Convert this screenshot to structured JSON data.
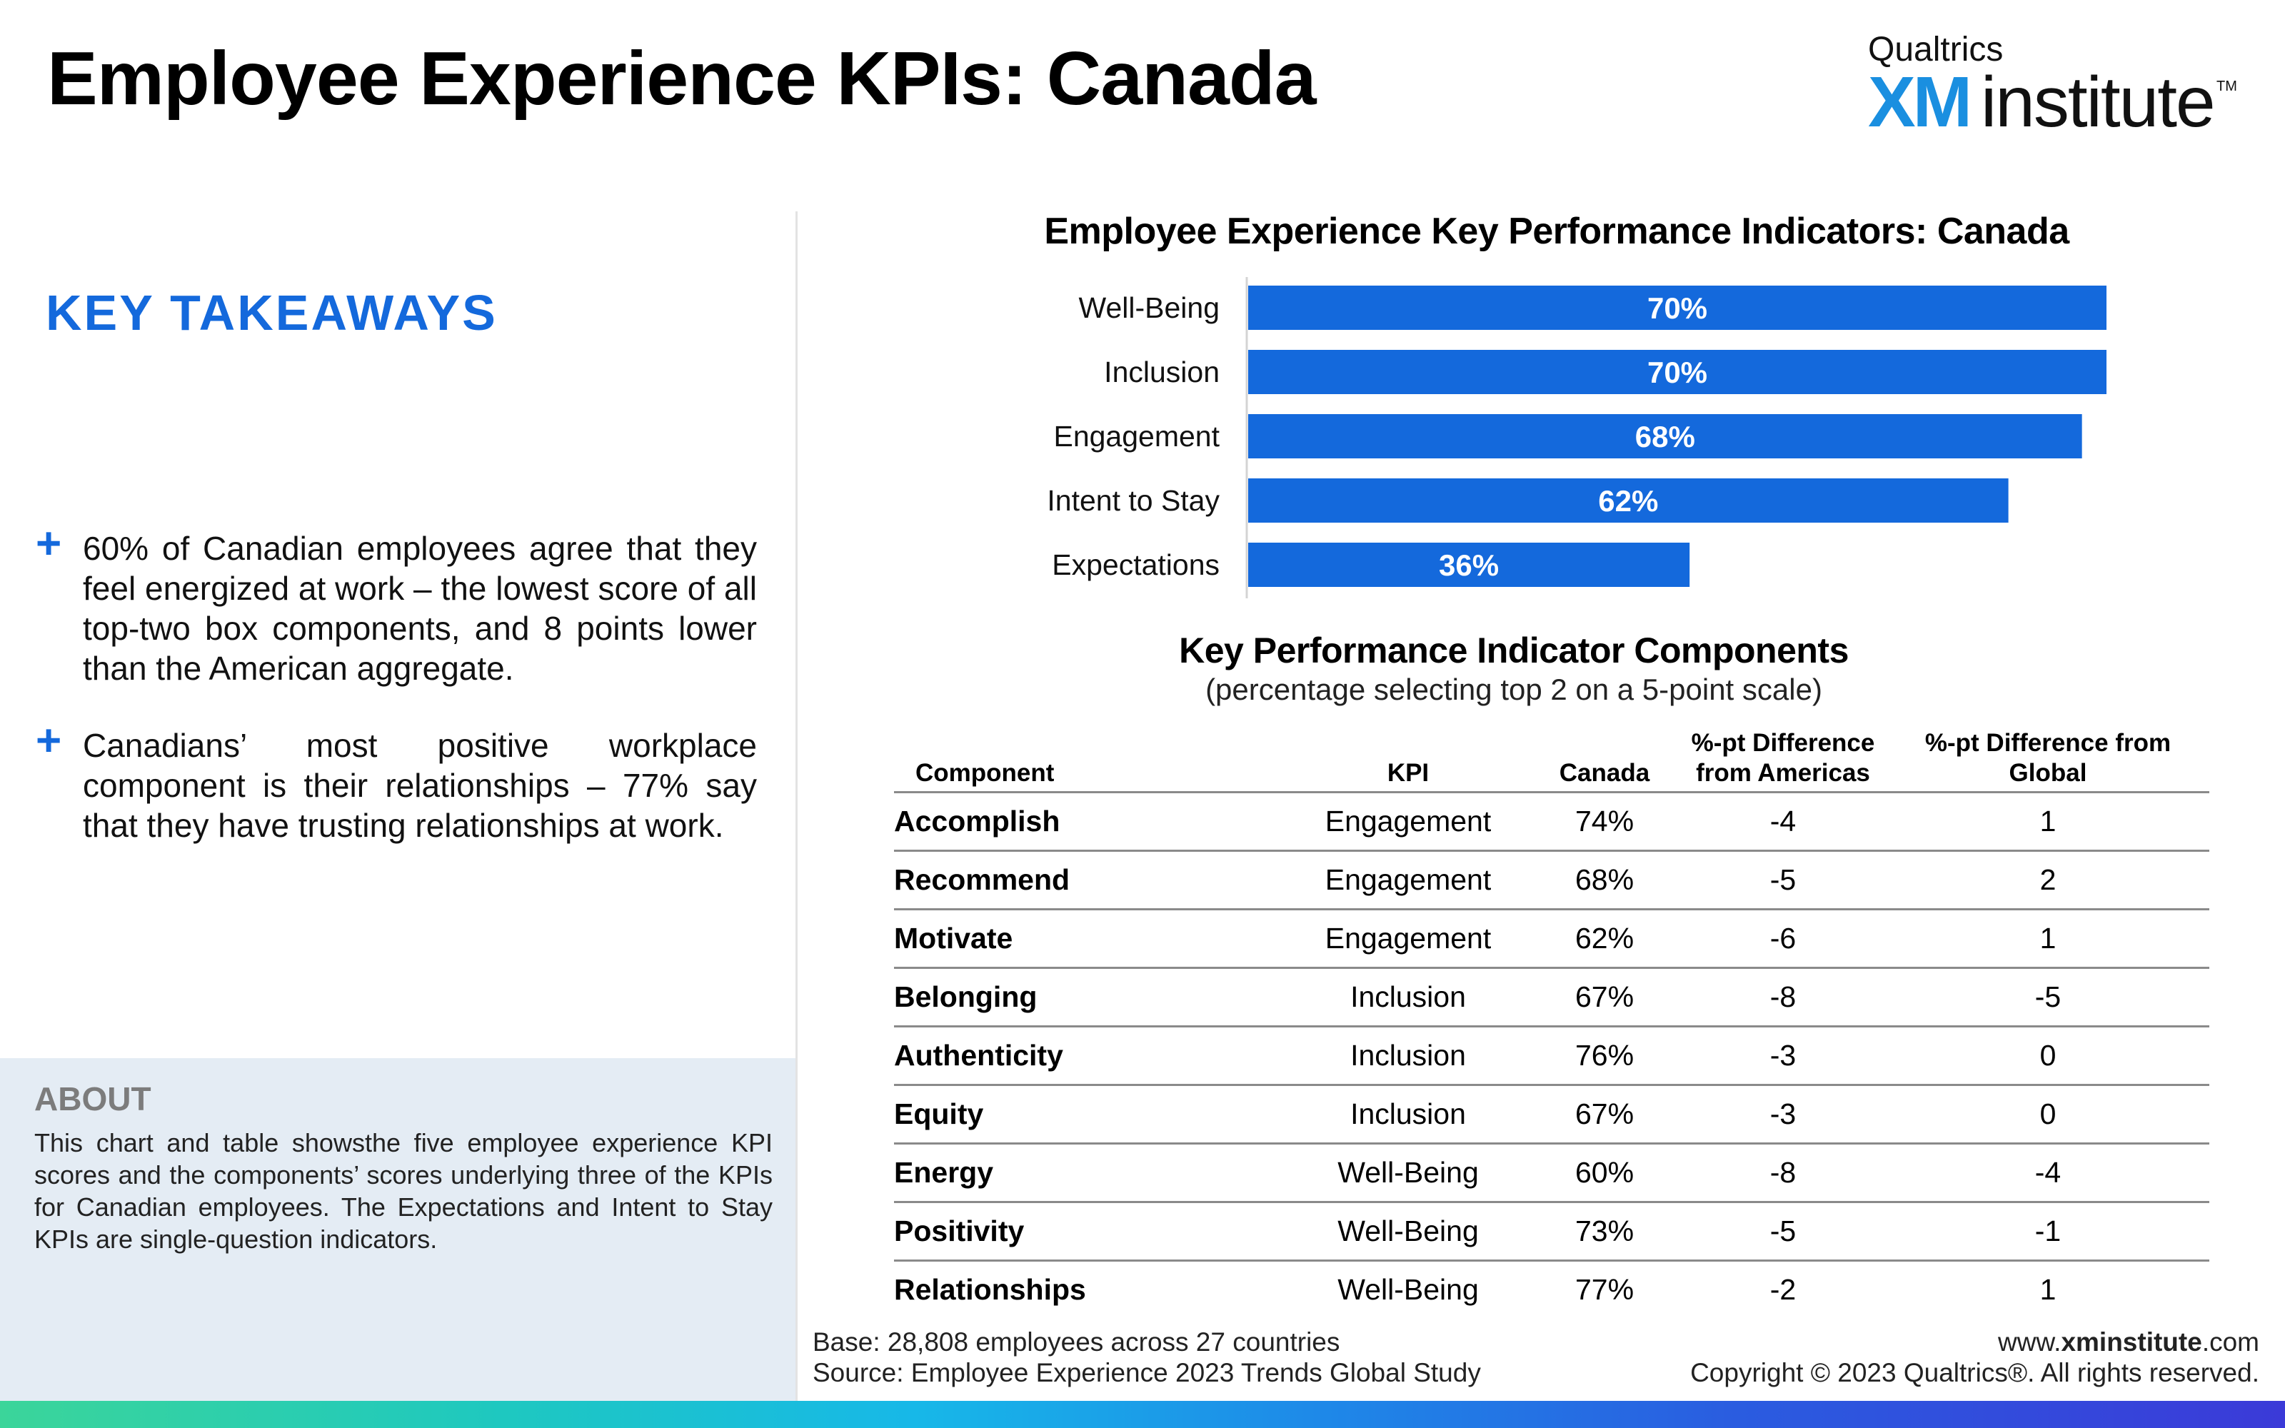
{
  "page": {
    "title": "Employee Experience KPIs: Canada",
    "logo_top": "Qualtrics",
    "logo_xm": "XM",
    "logo_institute": "institute",
    "logo_tm": "TM"
  },
  "takeaways": {
    "title": "KEY TAKEAWAYS",
    "items": [
      "60% of Canadian employees agree that they feel energized at work – the lowest score of all top-two box components, and 8 points lower than the American aggregate.",
      "Canadians’ most positive workplace component is their relationships – 77% say that they have trusting relationships at work."
    ]
  },
  "about": {
    "title": "ABOUT",
    "text": "This chart and table showsthe five employee experience KPI scores and the components’ scores underlying three of the KPIs for Canadian employees. The Expectations and Intent to Stay KPIs are single-question indicators."
  },
  "chart_data": {
    "type": "bar",
    "orientation": "horizontal",
    "title": "Employee Experience Key Performance Indicators: Canada",
    "categories": [
      "Well-Being",
      "Inclusion",
      "Engagement",
      "Intent to Stay",
      "Expectations"
    ],
    "values": [
      70,
      70,
      68,
      62,
      36
    ],
    "labels": [
      "70%",
      "70%",
      "68%",
      "62%",
      "36%"
    ],
    "bar_color": "#1469dc",
    "label_color": "#ffffff",
    "xlim": [
      0,
      100
    ],
    "grid": false
  },
  "table": {
    "title": "Key Performance Indicator Components",
    "subtitle": "(percentage selecting top 2 on a 5-point scale)",
    "headers": {
      "component": "Component",
      "kpi": "KPI",
      "canada": "Canada",
      "americas_line1": "%-pt Difference",
      "americas_line2": "from Americas",
      "global_line1": "%-pt Difference from",
      "global_line2": "Global"
    },
    "rows": [
      {
        "component": "Accomplish",
        "kpi": "Engagement",
        "canada": "74%",
        "americas": "-4",
        "global": "1"
      },
      {
        "component": "Recommend",
        "kpi": "Engagement",
        "canada": "68%",
        "americas": "-5",
        "global": "2"
      },
      {
        "component": "Motivate",
        "kpi": "Engagement",
        "canada": "62%",
        "americas": "-6",
        "global": "1"
      },
      {
        "component": "Belonging",
        "kpi": "Inclusion",
        "canada": "67%",
        "americas": "-8",
        "global": "-5"
      },
      {
        "component": "Authenticity",
        "kpi": "Inclusion",
        "canada": "76%",
        "americas": "-3",
        "global": "0"
      },
      {
        "component": "Equity",
        "kpi": "Inclusion",
        "canada": "67%",
        "americas": "-3",
        "global": "0"
      },
      {
        "component": "Energy",
        "kpi": "Well-Being",
        "canada": "60%",
        "americas": "-8",
        "global": "-4"
      },
      {
        "component": "Positivity",
        "kpi": "Well-Being",
        "canada": "73%",
        "americas": "-5",
        "global": "-1"
      },
      {
        "component": "Relationships",
        "kpi": "Well-Being",
        "canada": "77%",
        "americas": "-2",
        "global": "1"
      }
    ]
  },
  "footer": {
    "base": "Base: 28,808 employees across 27 countries",
    "source": "Source: Employee Experience 2023 Trends Global Study",
    "url_pre": "www.",
    "url_bold": "xminstitute",
    "url_post": ".com",
    "copyright": "Copyright © 2023 Qualtrics®. All rights reserved."
  }
}
